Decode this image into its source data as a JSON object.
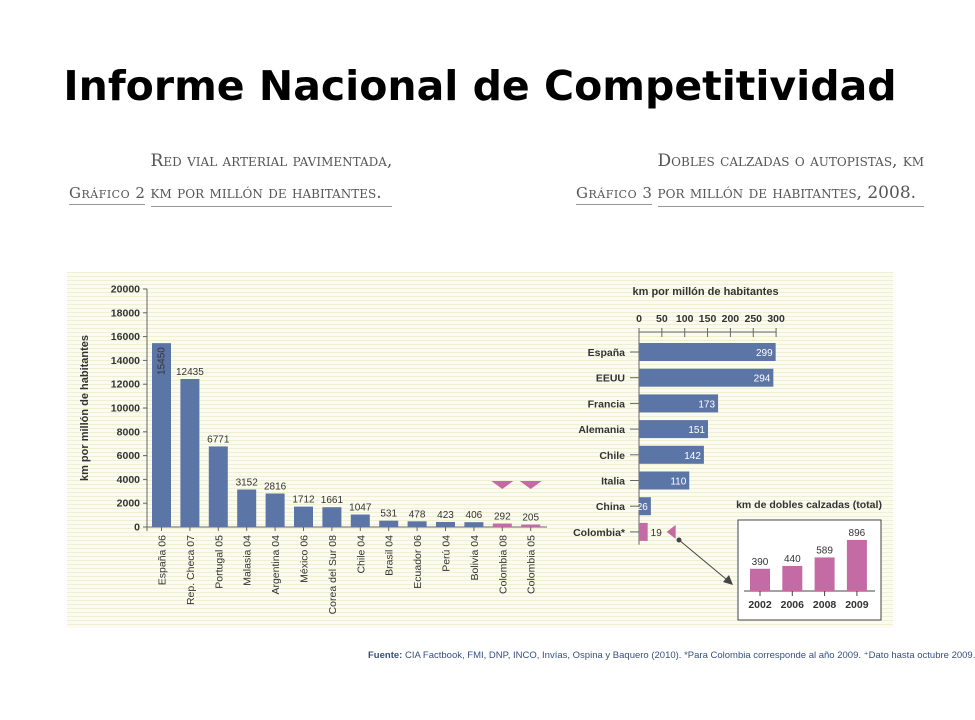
{
  "slide_title": "Informe Nacional de Competitividad",
  "source": {
    "label": "Fuente:",
    "text": "CIA Factbook, FMI, DNP, INCO, Invías, Ospina y Baquero (2010). *Para Colombia corresponde al año 2009. ⁺Dato hasta octubre 2009."
  },
  "colors": {
    "bar": "#5b75a6",
    "highlight": "#c46ba5",
    "value_label_light": "#ffffff",
    "text": "#333333"
  },
  "chart_data": [
    {
      "type": "bar",
      "heading_label": "Gráfico 2",
      "title_line1": "Red vial arterial pavimentada,",
      "title_line2": "km por millón de habitantes.",
      "ylabel": "km por millón de habitantes",
      "xlabel": "",
      "ylim": [
        0,
        20000
      ],
      "yticks": [
        "0",
        "2000",
        "4000",
        "6000",
        "8000",
        "10000",
        "12000",
        "14000",
        "16000",
        "18000",
        "20000"
      ],
      "grid": false,
      "categories": [
        "España 06",
        "Rep. Checa 07",
        "Portugal 05",
        "Malasia 04",
        "Argentina 04",
        "México 06",
        "Corea del Sur 08",
        "Chile 04",
        "Brasil 04",
        "Ecuador 06",
        "Perú 04",
        "Bolivia 04",
        "Colombia 08",
        "Colombia 05"
      ],
      "values": [
        15450,
        12435,
        6771,
        3152,
        2816,
        1712,
        1661,
        1047,
        531,
        478,
        423,
        406,
        292,
        205
      ],
      "value_labels": [
        "15450",
        "12435",
        "6771",
        "3152",
        "2816",
        "1712",
        "1661",
        "1047",
        "531",
        "478",
        "423",
        "406",
        "292",
        "205"
      ],
      "highlighted": [
        "Colombia 08",
        "Colombia 05"
      ]
    },
    {
      "type": "bar",
      "orientation": "horizontal",
      "heading_label": "Gráfico 3",
      "title_line1": "Dobles calzadas o autopistas, km",
      "title_line2": "por millón de habitantes, 2008.",
      "xlabel": "km por millón de habitantes",
      "xlim": [
        0,
        300
      ],
      "xticks": [
        "0",
        "50",
        "100",
        "150",
        "200",
        "250",
        "300"
      ],
      "grid": false,
      "categories": [
        "España",
        "EEUU",
        "Francia",
        "Alemania",
        "Chile",
        "Italia",
        "China",
        "Colombia*"
      ],
      "values": [
        299,
        294,
        173,
        151,
        142,
        110,
        26,
        19
      ],
      "value_labels": [
        "299",
        "294",
        "173",
        "151",
        "142",
        "110",
        "26",
        "19"
      ],
      "highlighted": [
        "Colombia*"
      ]
    },
    {
      "type": "bar",
      "title": "km de dobles calzadas (total)",
      "categories": [
        "2002",
        "2006",
        "2008",
        "2009"
      ],
      "values": [
        390,
        440,
        589,
        896
      ],
      "value_labels": [
        "390",
        "440",
        "589",
        "896"
      ],
      "ylim": [
        0,
        1000
      ],
      "grid": false
    }
  ]
}
